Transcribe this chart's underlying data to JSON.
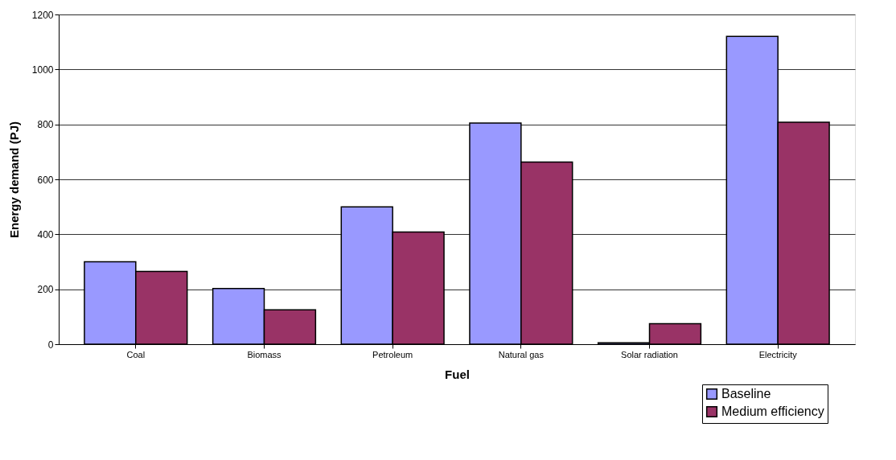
{
  "chart_data": {
    "type": "bar",
    "xlabel": "Fuel",
    "ylabel": "Energy demand (PJ)",
    "categories": [
      "Coal",
      "Biomass",
      "Petroleum",
      "Natural gas",
      "Solar radiation",
      "Electricity"
    ],
    "series": [
      {
        "name": "Baseline",
        "color": "#9999ff",
        "values": [
          300,
          203,
          500,
          805,
          5,
          1120
        ]
      },
      {
        "name": "Medium efficiency",
        "color": "#993366",
        "values": [
          265,
          125,
          408,
          663,
          75,
          808
        ]
      }
    ],
    "ylim": [
      0,
      1200
    ],
    "yticks": [
      0,
      200,
      400,
      600,
      800,
      1000,
      1200
    ],
    "grid": "y",
    "legend": "bottom right"
  }
}
